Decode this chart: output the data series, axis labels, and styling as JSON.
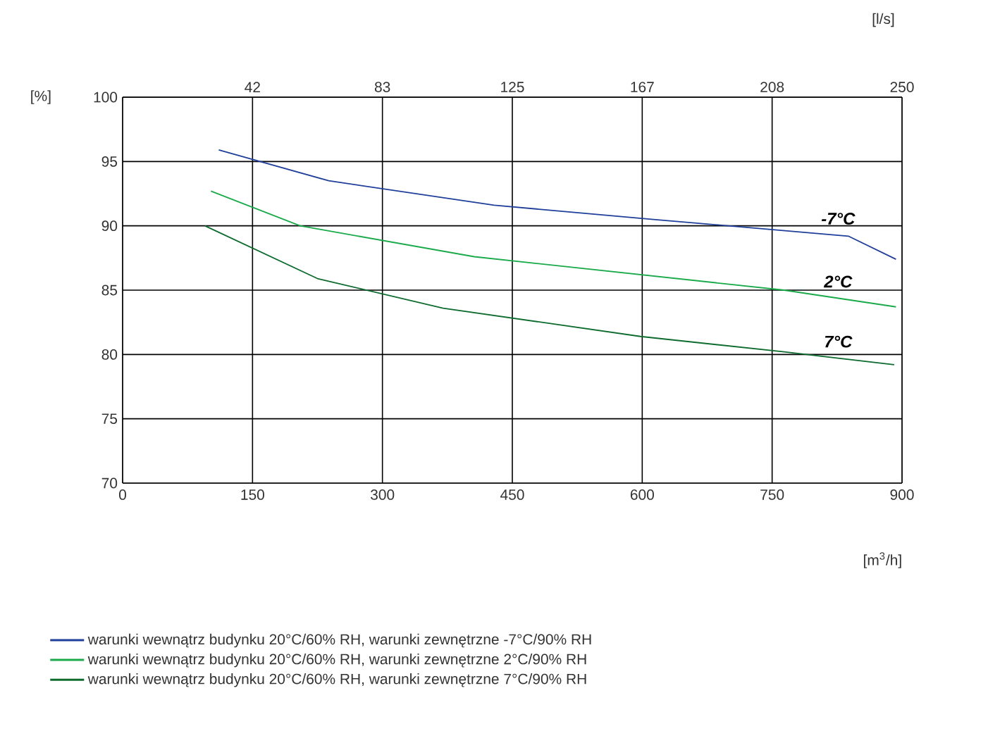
{
  "chart_data": {
    "type": "line",
    "xlabel": "[m$^{3}$/h]",
    "ylabel": "[%]",
    "x2label": "[l/s]",
    "xlim": [
      0,
      900
    ],
    "xticks": [
      0,
      150,
      300,
      450,
      600,
      750,
      900
    ],
    "ylim": [
      70,
      100
    ],
    "yticks": [
      70,
      75,
      80,
      85,
      90,
      95,
      100
    ],
    "x2lim": [
      0,
      250
    ],
    "x2ticks": [
      {
        "value": 41.67,
        "label": "42"
      },
      {
        "value": 83.33,
        "label": "83"
      },
      125,
      {
        "value": 166.67,
        "label": "167"
      },
      {
        "value": 208.33,
        "label": "208"
      },
      250
    ],
    "grid": true,
    "legend": "bottom",
    "series": [
      {
        "name": "warunki wewnątrz budynku 20°C/60% RH, warunki zewnętrzne -7°C/90% RH",
        "color": "#1f3f9a",
        "x": [
          111,
          238,
          429,
          613,
          838,
          893
        ],
        "values": [
          95.9,
          93.5,
          91.6,
          90.5,
          89.2,
          87.4
        ]
      },
      {
        "name": "warunki wewnątrz budynku 20°C/60% RH, warunki zewnętrzne 2°C/90% RH",
        "color": "#1aaa4a",
        "x": [
          102,
          205,
          406,
          764,
          893
        ],
        "values": [
          92.7,
          90.0,
          87.6,
          85.0,
          83.7
        ]
      },
      {
        "name": "warunki wewnątrz budynku 20°C/60% RH, warunki zewnętrzne 7°C/90% RH",
        "color": "#0d6b2e",
        "x": [
          95,
          225,
          370,
          598,
          764,
          891
        ],
        "values": [
          90.0,
          85.9,
          83.6,
          81.4,
          80.2,
          79.2
        ]
      }
    ],
    "annotations": [
      "-7°C",
      "2°C",
      "7°C"
    ]
  }
}
